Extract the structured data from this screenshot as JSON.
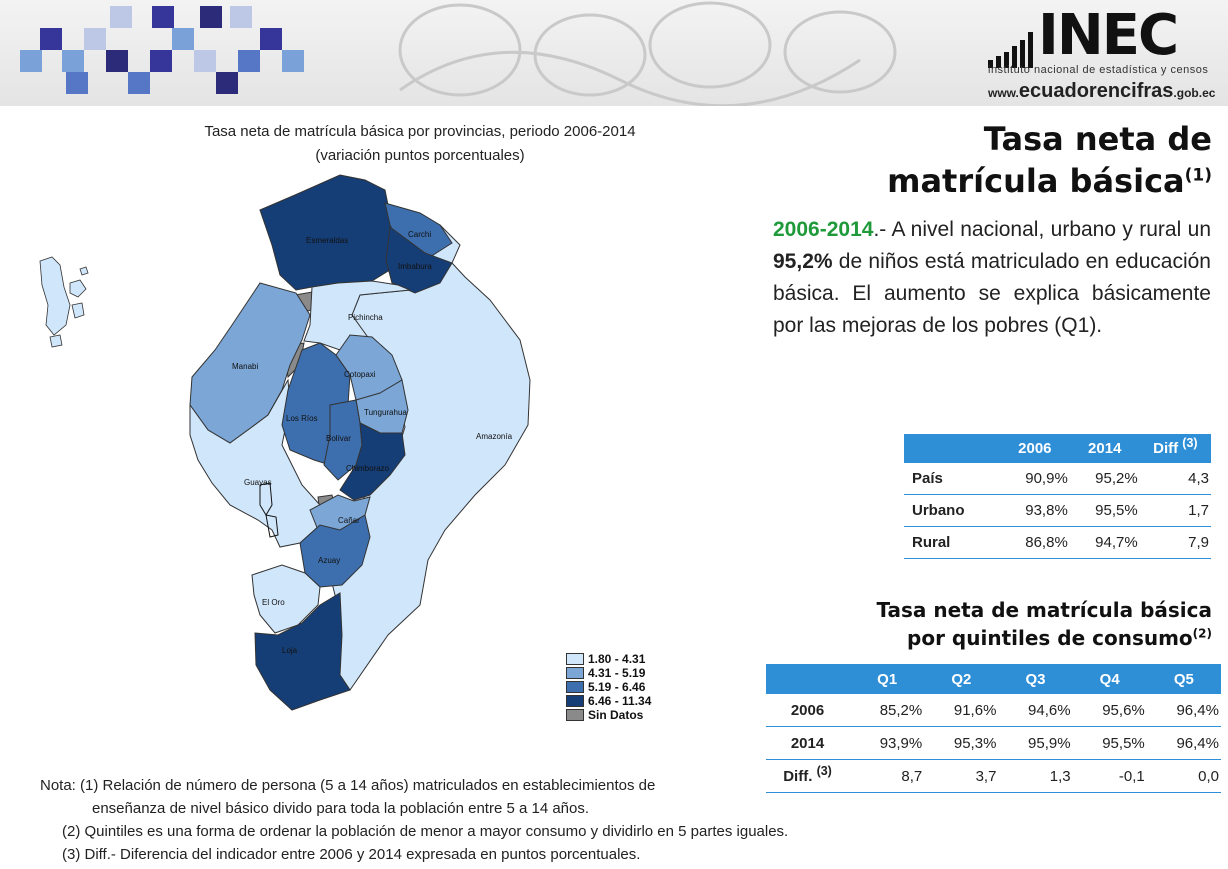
{
  "banner": {
    "logo_text": "INEC",
    "logo_subtitle": "instituto nacional de estadística y censos",
    "website_prefix": "www.",
    "website_main": "ecuadorencifras",
    "website_suffix": ".gob.ec",
    "square_colors": [
      "#35359a",
      "#7aa2d8",
      "#bcc8e6",
      "#2b2b7a",
      "#5577c5"
    ]
  },
  "map": {
    "title_line1": "Tasa neta de matrícula básica por provincias,  periodo 2006-2014",
    "title_line2": "(variación puntos porcentuales)",
    "provinces": {
      "esmeraldas": "Esmeraldas",
      "carchi": "Carchi",
      "imbabura": "Imbabura",
      "pichincha": "Pichincha",
      "manabi": "Manabi",
      "cotopaxi": "Cotopaxi",
      "los_rios": "Los Ríos",
      "tungurahua": "Tungurahua",
      "bolivar": "Bolívar",
      "amazonia": "Amazonía",
      "chimborazo": "Chimborazo",
      "guayas": "Guayas",
      "canar": "Cañar",
      "azuay": "Azuay",
      "el_oro": "El Oro",
      "loja": "Loja"
    },
    "colors": {
      "c1": "#d0e6fb",
      "c2": "#7ba6d6",
      "c3": "#3d6fae",
      "c4": "#163e76",
      "nodata": "#8a8a8a"
    },
    "legend": [
      {
        "label": "1.80 - 4.31",
        "color": "#d0e6fb"
      },
      {
        "label": "4.31 - 5.19",
        "color": "#7ba6d6"
      },
      {
        "label": "5.19 - 6.46",
        "color": "#3d6fae"
      },
      {
        "label": "6.46 - 11.34",
        "color": "#163e76"
      },
      {
        "label": "Sin Datos",
        "color": "#8a8a8a"
      }
    ]
  },
  "main": {
    "title_line1": "Tasa neta de",
    "title_line2": "matrícula básica",
    "title_sup": "(1)",
    "summary_year": "2006-2014",
    "summary_a": ".- A nivel nacional, urbano y rural un ",
    "summary_value": "95,2%",
    "summary_b": " de niños está matriculado en educación básica. El aumento se explica básicamente por las mejoras de los pobres (Q1)."
  },
  "table1": {
    "headers": [
      "",
      "2006",
      "2014",
      "Diff"
    ],
    "diff_sup": "(3)",
    "rows": [
      {
        "label": "País",
        "v2006": "90,9%",
        "v2014": "95,2%",
        "diff": "4,3"
      },
      {
        "label": "Urbano",
        "v2006": "93,8%",
        "v2014": "95,5%",
        "diff": "1,7"
      },
      {
        "label": "Rural",
        "v2006": "86,8%",
        "v2014": "94,7%",
        "diff": "7,9"
      }
    ]
  },
  "table2": {
    "title_line1": "Tasa neta de matrícula básica",
    "title_line2": "por quintiles de consumo",
    "title_sup": "(2)",
    "headers": [
      "",
      "Q1",
      "Q2",
      "Q3",
      "Q4",
      "Q5"
    ],
    "rows": [
      {
        "label": "2006",
        "values": [
          "85,2%",
          "91,6%",
          "94,6%",
          "95,6%",
          "96,4%"
        ]
      },
      {
        "label": "2014",
        "values": [
          "93,9%",
          "95,3%",
          "95,9%",
          "95,5%",
          "96,4%"
        ]
      },
      {
        "label": "Diff.",
        "sup": "(3)",
        "values": [
          "8,7",
          "3,7",
          "1,3",
          "-0,1",
          "0,0"
        ]
      }
    ]
  },
  "notes": {
    "n1_prefix": "Nota: (1) ",
    "n1_line1": "Relación de número de persona (5 a 14 años) matriculados en establecimientos de",
    "n1_line2": "enseñanza de nivel básico divido para toda la población entre 5 a 14 años.",
    "n2": "(2) Quintiles es una forma de ordenar la población de menor a mayor consumo y dividirlo en 5 partes iguales.",
    "n3": "(3) Diff.- Diferencia del indicador entre 2006 y 2014 expresada en puntos porcentuales."
  }
}
